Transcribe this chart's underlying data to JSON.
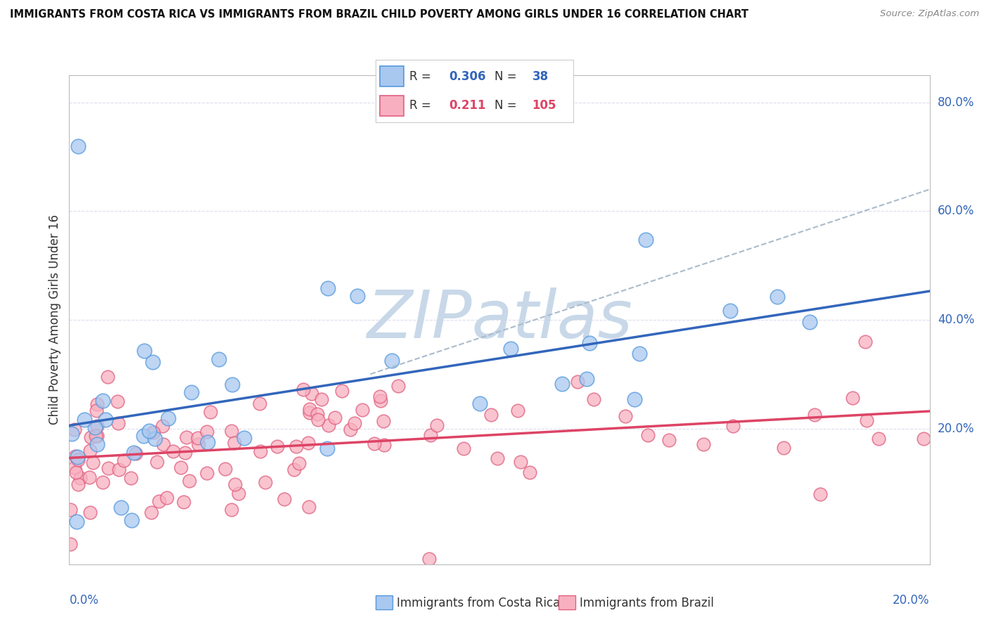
{
  "title": "IMMIGRANTS FROM COSTA RICA VS IMMIGRANTS FROM BRAZIL CHILD POVERTY AMONG GIRLS UNDER 16 CORRELATION CHART",
  "source": "Source: ZipAtlas.com",
  "ylabel": "Child Poverty Among Girls Under 16",
  "xlim": [
    0.0,
    0.2
  ],
  "ylim": [
    -0.05,
    0.85
  ],
  "y_ticks": [
    0.2,
    0.4,
    0.6,
    0.8
  ],
  "y_tick_labels": [
    "20.0%",
    "40.0%",
    "60.0%",
    "80.0%"
  ],
  "legend_r1_val": "0.306",
  "legend_n1_val": "38",
  "legend_r2_val": "0.211",
  "legend_n2_val": "105",
  "color_blue_fill": "#A8C8F0",
  "color_blue_edge": "#5599DD",
  "color_pink_fill": "#F8B0C0",
  "color_pink_edge": "#E06080",
  "color_blue_line": "#3366BB",
  "color_pink_line": "#DD4466",
  "color_dashed": "#AABBCC",
  "watermark_color": "#C8D8E8",
  "background": "#FFFFFF",
  "grid_color": "#DDDDEE",
  "title_color": "#111111",
  "source_color": "#888888",
  "axis_label_color": "#3366BB"
}
